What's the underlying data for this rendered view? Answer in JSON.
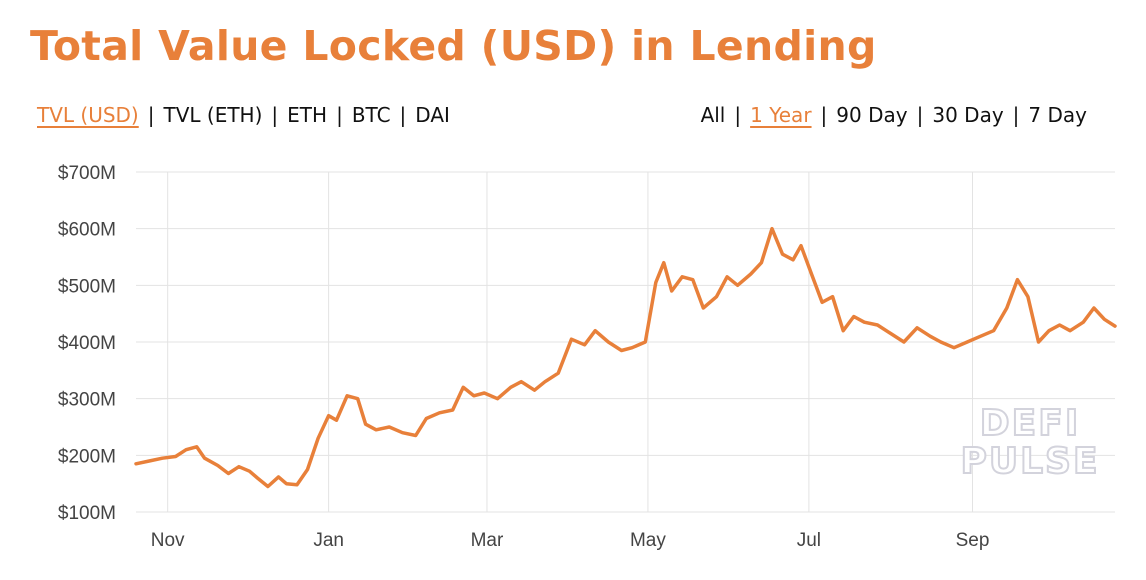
{
  "title": "Total Value Locked (USD) in Lending",
  "tabs": [
    {
      "label": "TVL (USD)",
      "active": true
    },
    {
      "label": "TVL (ETH)",
      "active": false
    },
    {
      "label": "ETH",
      "active": false
    },
    {
      "label": "BTC",
      "active": false
    },
    {
      "label": "DAI",
      "active": false
    }
  ],
  "ranges": [
    {
      "label": "All",
      "active": false
    },
    {
      "label": "1 Year",
      "active": true
    },
    {
      "label": "90 Day",
      "active": false
    },
    {
      "label": "30 Day",
      "active": false
    },
    {
      "label": "7 Day",
      "active": false
    }
  ],
  "separator": "|",
  "watermark": {
    "line1": "DEFI",
    "line2": "PULSE"
  },
  "colors": {
    "accent": "#e8803a",
    "grid": "#e3e3e3",
    "text": "#111111"
  },
  "chart_data": {
    "type": "line",
    "title": "Total Value Locked (USD) in Lending",
    "xlabel": "",
    "ylabel": "",
    "ylim": [
      100,
      700
    ],
    "yticks": [
      100,
      200,
      300,
      400,
      500,
      600,
      700
    ],
    "ytick_labels": [
      "$100M",
      "$200M",
      "$300M",
      "$400M",
      "$500M",
      "$600M",
      "$700M"
    ],
    "xtick_labels": [
      "Nov",
      "Jan",
      "Mar",
      "May",
      "Jul",
      "Sep"
    ],
    "xtick_dates": [
      "2019-11-01",
      "2020-01-01",
      "2020-03-01",
      "2020-05-01",
      "2020-07-01",
      "2020-09-01"
    ],
    "xlim": [
      "2019-10-20",
      "2020-10-25"
    ],
    "grid": true,
    "legend": "none",
    "series": [
      {
        "color": "#e8803a",
        "x": [
          "2019-10-20",
          "2019-10-25",
          "2019-10-30",
          "2019-11-04",
          "2019-11-08",
          "2019-11-12",
          "2019-11-15",
          "2019-11-20",
          "2019-11-24",
          "2019-11-28",
          "2019-12-02",
          "2019-12-05",
          "2019-12-09",
          "2019-12-13",
          "2019-12-16",
          "2019-12-20",
          "2019-12-24",
          "2019-12-28",
          "2020-01-01",
          "2020-01-04",
          "2020-01-08",
          "2020-01-12",
          "2020-01-15",
          "2020-01-19",
          "2020-01-24",
          "2020-01-29",
          "2020-02-03",
          "2020-02-07",
          "2020-02-12",
          "2020-02-17",
          "2020-02-21",
          "2020-02-25",
          "2020-02-29",
          "2020-03-05",
          "2020-03-10",
          "2020-03-14",
          "2020-03-19",
          "2020-03-23",
          "2020-03-28",
          "2020-04-02",
          "2020-04-07",
          "2020-04-11",
          "2020-04-16",
          "2020-04-21",
          "2020-04-25",
          "2020-04-30",
          "2020-05-04",
          "2020-05-07",
          "2020-05-10",
          "2020-05-14",
          "2020-05-18",
          "2020-05-22",
          "2020-05-27",
          "2020-05-31",
          "2020-06-04",
          "2020-06-09",
          "2020-06-13",
          "2020-06-17",
          "2020-06-21",
          "2020-06-25",
          "2020-06-28",
          "2020-07-02",
          "2020-07-06",
          "2020-07-10",
          "2020-07-14",
          "2020-07-18",
          "2020-07-22",
          "2020-07-27",
          "2020-08-01",
          "2020-08-06",
          "2020-08-11",
          "2020-08-16",
          "2020-08-20",
          "2020-08-25",
          "2020-08-30",
          "2020-09-04",
          "2020-09-09",
          "2020-09-14",
          "2020-09-18",
          "2020-09-22",
          "2020-09-26",
          "2020-09-30",
          "2020-10-04",
          "2020-10-08",
          "2020-10-13",
          "2020-10-17",
          "2020-10-21",
          "2020-10-25"
        ],
        "y": [
          185,
          190,
          195,
          198,
          210,
          215,
          195,
          182,
          168,
          180,
          172,
          160,
          145,
          162,
          150,
          148,
          175,
          230,
          270,
          262,
          305,
          300,
          255,
          245,
          250,
          240,
          235,
          265,
          275,
          280,
          320,
          305,
          310,
          300,
          320,
          330,
          315,
          330,
          345,
          405,
          395,
          420,
          400,
          385,
          390,
          400,
          505,
          540,
          490,
          515,
          510,
          460,
          480,
          515,
          500,
          520,
          540,
          600,
          555,
          545,
          570,
          520,
          470,
          480,
          420,
          445,
          435,
          430,
          415,
          400,
          425,
          410,
          400,
          390,
          400,
          410,
          420,
          460,
          510,
          480,
          400,
          420,
          430,
          420,
          435,
          460,
          440,
          428
        ]
      }
    ]
  }
}
